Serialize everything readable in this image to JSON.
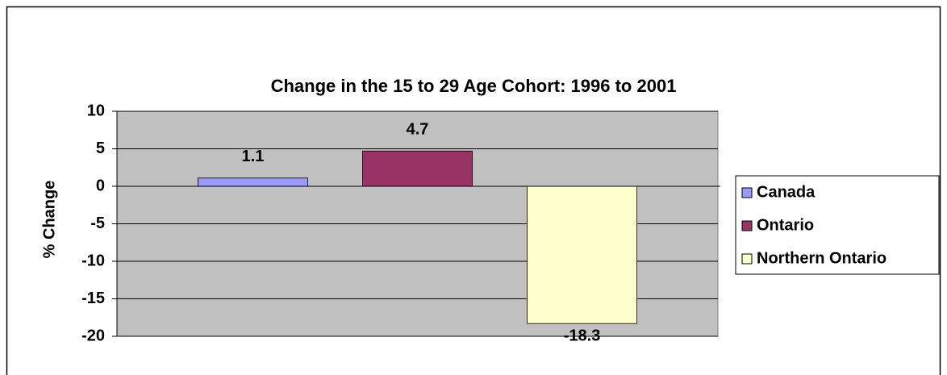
{
  "chart_data": {
    "type": "bar",
    "title": "Change in the 15 to 29 Age Cohort: 1996 to 2001",
    "y_label": "% Change",
    "categories": [
      null
    ],
    "series": [
      {
        "name": "Canada",
        "color": "#9999ff",
        "values": [
          1.1
        ]
      },
      {
        "name": "Ontario",
        "color": "#993366",
        "values": [
          4.7
        ]
      },
      {
        "name": "Northern Ontario",
        "color": "#ffffcc",
        "values": [
          -18.3
        ]
      }
    ],
    "ylim": [
      -20,
      10
    ],
    "yticks": [
      -20,
      -15,
      -10,
      -5,
      0,
      5,
      10
    ],
    "grid": true,
    "legend": "right"
  }
}
